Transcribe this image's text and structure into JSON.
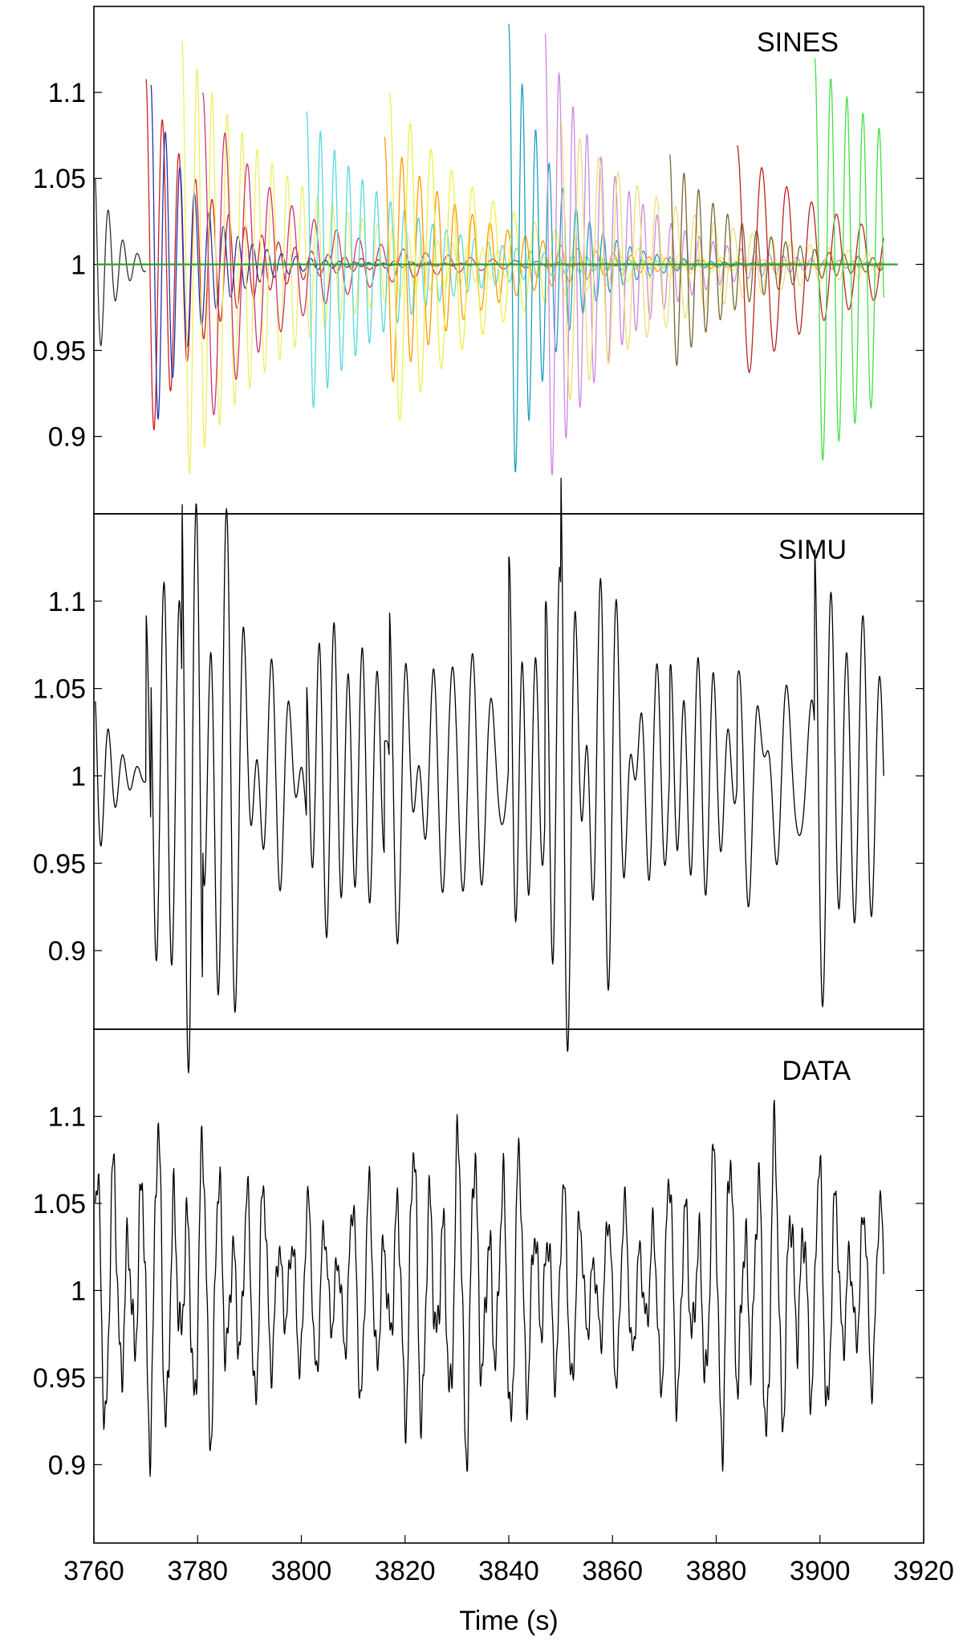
{
  "chart_data": [
    {
      "type": "line",
      "title": "SINES",
      "xlim": [
        3760,
        3920
      ],
      "ylim": [
        0.855,
        1.15
      ],
      "yticks": [
        0.9,
        0.95,
        1,
        1.05,
        1.1
      ],
      "ytick_labels": [
        "0.9",
        "0.95",
        "1",
        "1.05",
        "1.1"
      ],
      "baseline": {
        "y": 1.0,
        "color": "#2ca02c"
      },
      "series": [
        {
          "color": "#303030",
          "t0": 3760,
          "t1": 3770,
          "amp": 0.07,
          "period": 2.8,
          "decay": 3.5
        },
        {
          "color": "#cc2222",
          "t0": 3770,
          "t1": 3915,
          "amp": 0.11,
          "period": 3.2,
          "decay": 12
        },
        {
          "color": "#2233aa",
          "t0": 3771,
          "t1": 3915,
          "amp": 0.105,
          "period": 2.8,
          "decay": 9
        },
        {
          "color": "#eeee66",
          "t0": 3777,
          "t1": 3915,
          "amp": 0.13,
          "period": 2.9,
          "decay": 22
        },
        {
          "color": "#cc3377",
          "t0": 3781,
          "t1": 3915,
          "amp": 0.1,
          "period": 4.3,
          "decay": 16
        },
        {
          "color": "#55d8e0",
          "t0": 3801,
          "t1": 3915,
          "amp": 0.09,
          "period": 2.7,
          "decay": 18
        },
        {
          "color": "#ff9900",
          "t0": 3816,
          "t1": 3915,
          "amp": 0.075,
          "period": 3.4,
          "decay": 18
        },
        {
          "color": "#eeee44",
          "t0": 3817,
          "t1": 3915,
          "amp": 0.1,
          "period": 4.0,
          "decay": 20
        },
        {
          "color": "#1aa0c0",
          "t0": 3840,
          "t1": 3915,
          "amp": 0.14,
          "period": 2.6,
          "decay": 9
        },
        {
          "color": "#cc88dd",
          "t0": 3847,
          "t1": 3915,
          "amp": 0.135,
          "period": 2.7,
          "decay": 14
        },
        {
          "color": "#eedd77",
          "t0": 3850,
          "t1": 3915,
          "amp": 0.085,
          "period": 3.7,
          "decay": 24
        },
        {
          "color": "#776633",
          "t0": 3871,
          "t1": 3915,
          "amp": 0.065,
          "period": 2.8,
          "decay": 14
        },
        {
          "color": "#bb2222",
          "t0": 3884,
          "t1": 3915,
          "amp": 0.07,
          "period": 4.8,
          "decay": 22
        },
        {
          "color": "#44dd44",
          "t0": 3899,
          "t1": 3915,
          "amp": 0.12,
          "period": 3.1,
          "decay": 30
        }
      ]
    },
    {
      "type": "line",
      "title": "SIMU",
      "xlim": [
        3760,
        3920
      ],
      "ylim": [
        0.855,
        1.15
      ],
      "yticks": [
        0.9,
        0.95,
        1,
        1.05,
        1.1
      ],
      "ytick_labels": [
        "0.9",
        "0.95",
        "1",
        "1.05",
        "1.1"
      ],
      "series": [
        {
          "color": "#000000",
          "mode": "sum_of_sines"
        }
      ]
    },
    {
      "type": "line",
      "title": "DATA",
      "xlabel": "Time (s)",
      "xlim": [
        3760,
        3920
      ],
      "ylim": [
        0.855,
        1.15
      ],
      "xticks": [
        3760,
        3780,
        3800,
        3820,
        3840,
        3860,
        3880,
        3900,
        3920
      ],
      "xtick_labels": [
        "3760",
        "3780",
        "3800",
        "3820",
        "3840",
        "3860",
        "3880",
        "3900",
        "3920"
      ],
      "yticks": [
        0.9,
        0.95,
        1,
        1.05,
        1.1
      ],
      "ytick_labels": [
        "0.9",
        "0.95",
        "1",
        "1.05",
        "1.1"
      ],
      "series": [
        {
          "color": "#000000",
          "t0": 3760,
          "t1": 3913,
          "amp": 0.1,
          "components": [
            {
              "period": 2.9,
              "weight": 0.55
            },
            {
              "period": 4.1,
              "weight": 0.3
            },
            {
              "period": 1.3,
              "weight": 0.12
            },
            {
              "period": 0.6,
              "weight": 0.08
            }
          ]
        }
      ]
    }
  ]
}
